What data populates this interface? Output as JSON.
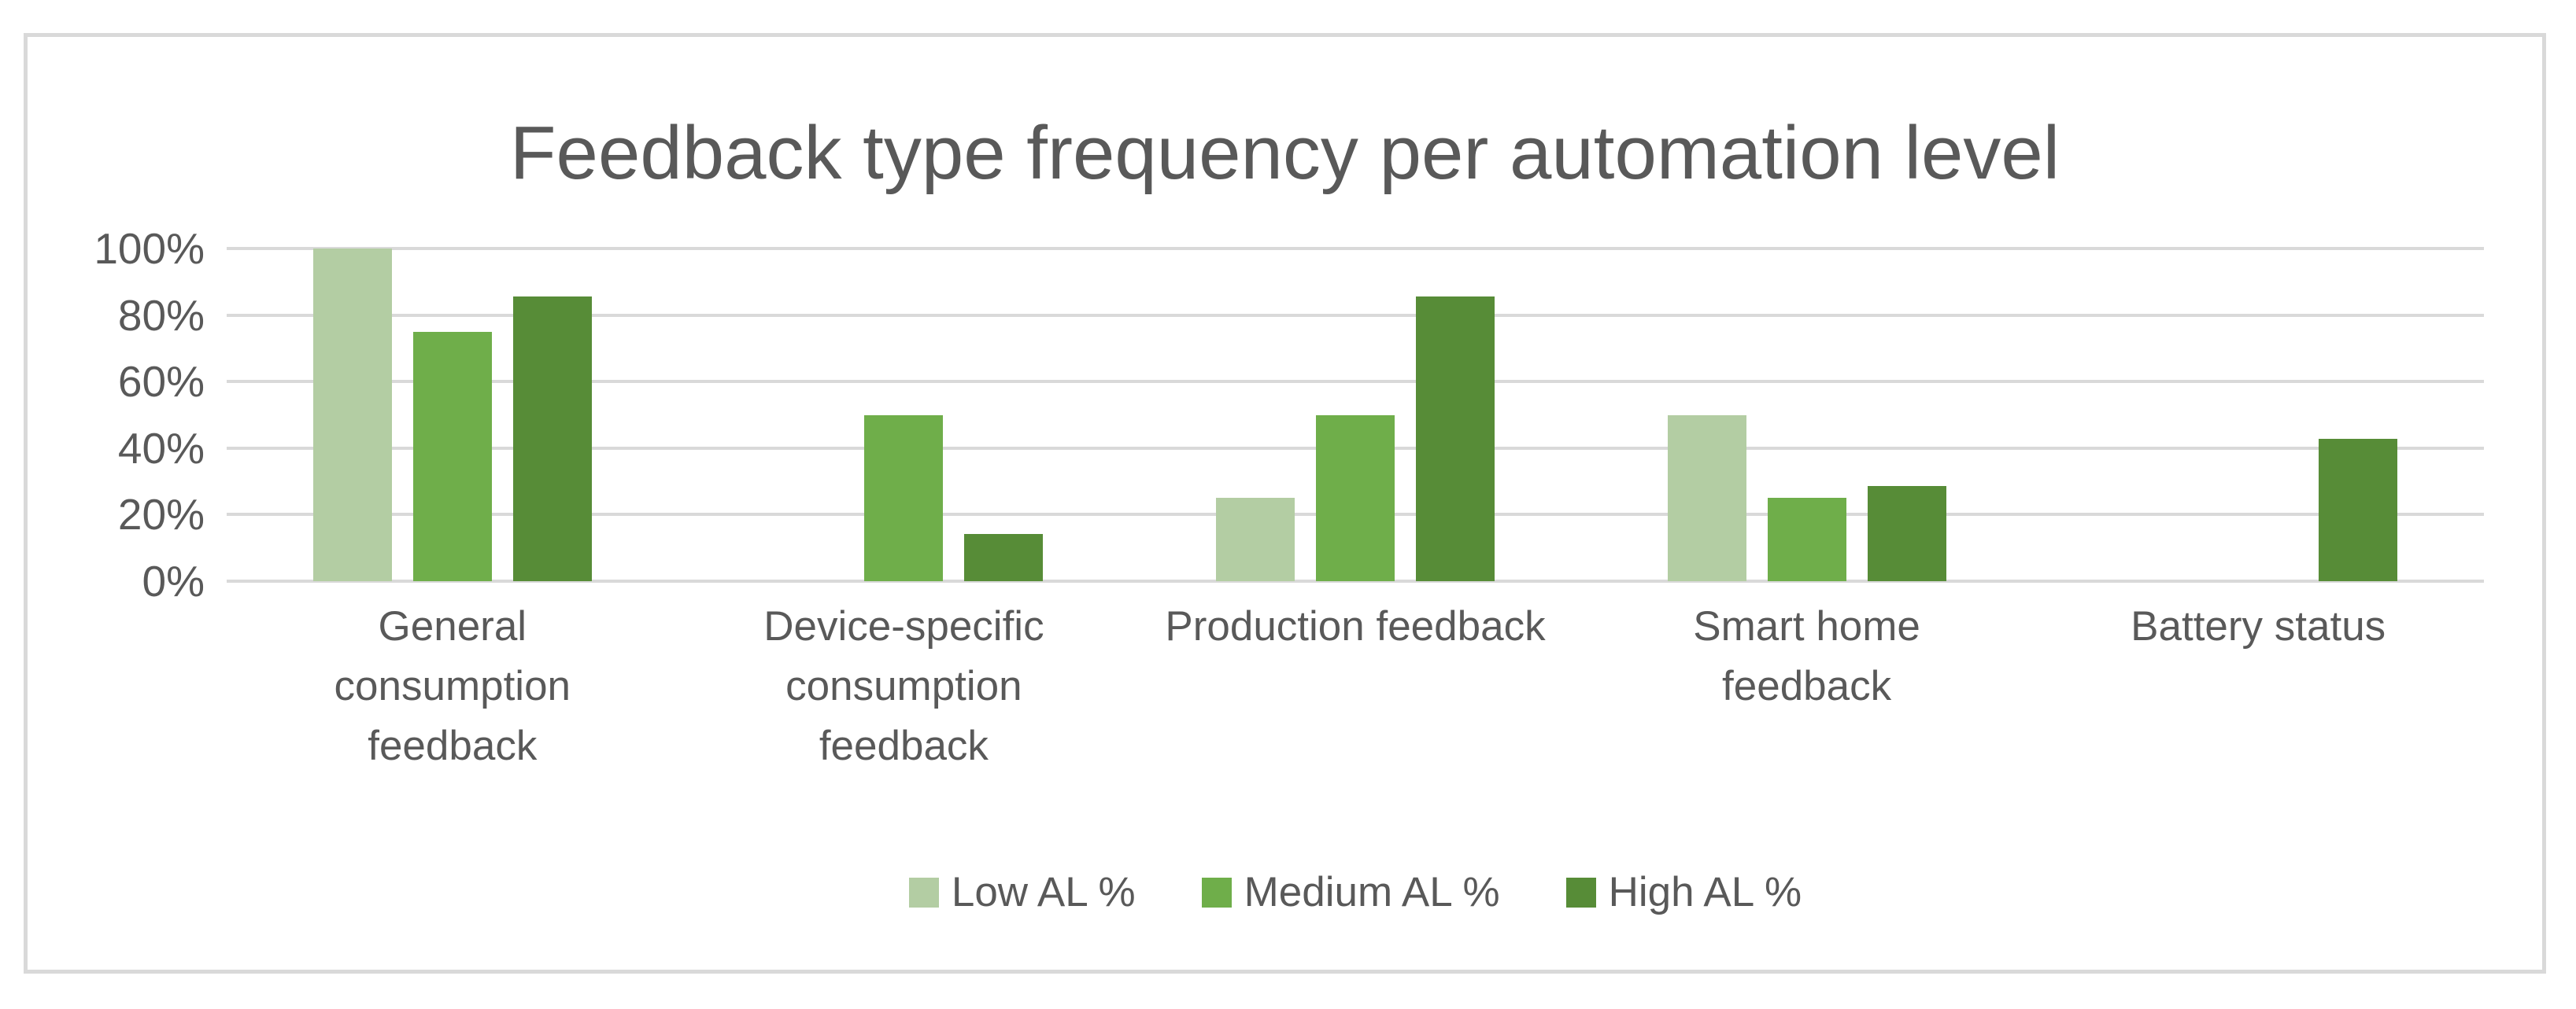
{
  "chart_data": {
    "type": "bar",
    "title": "Feedback type frequency per automation level",
    "categories": [
      "General\nconsumption\nfeedback",
      "Device-specific\nconsumption\nfeedback",
      "Production feedback",
      "Smart home\nfeedback",
      "Battery status"
    ],
    "series": [
      {
        "name": "Low AL %",
        "color": "#b3cda3",
        "values": [
          100,
          0,
          25,
          50,
          0
        ]
      },
      {
        "name": "Medium AL %",
        "color": "#6fae4a",
        "values": [
          75,
          50,
          50,
          25,
          0
        ]
      },
      {
        "name": "High AL %",
        "color": "#578c37",
        "values": [
          85.7,
          14.3,
          85.7,
          28.6,
          42.9
        ]
      }
    ],
    "y_ticks": [
      "0%",
      "20%",
      "40%",
      "60%",
      "80%",
      "100%"
    ],
    "ylim": [
      0,
      100
    ],
    "grid": true,
    "legend_position": "bottom",
    "colors": {
      "text": "#595959",
      "gridline": "#d9d9d9",
      "frame_border": "#d9d9d9",
      "background": "#ffffff"
    }
  }
}
